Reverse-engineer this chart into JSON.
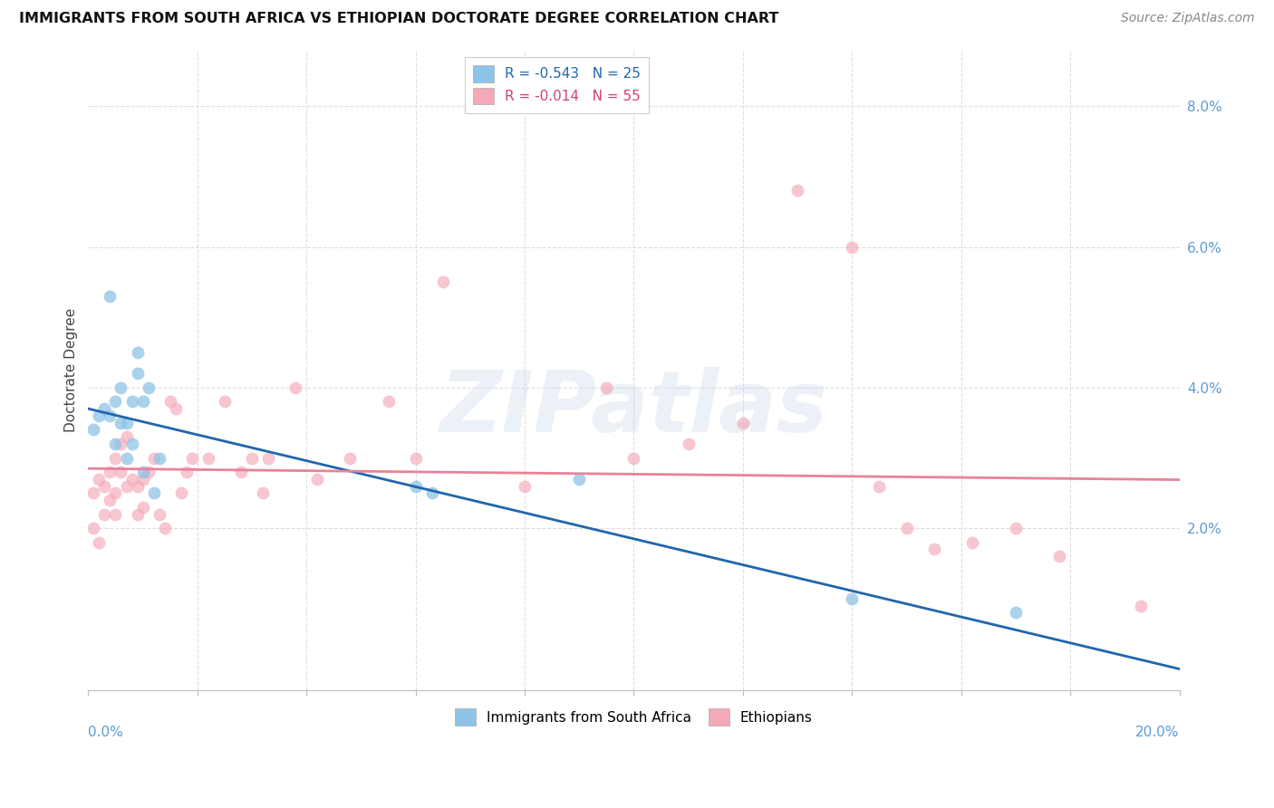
{
  "title": "IMMIGRANTS FROM SOUTH AFRICA VS ETHIOPIAN DOCTORATE DEGREE CORRELATION CHART",
  "source": "Source: ZipAtlas.com",
  "ylabel": "Doctorate Degree",
  "ytick_values": [
    0.02,
    0.04,
    0.06,
    0.08
  ],
  "xmin": 0.0,
  "xmax": 0.2,
  "ymin": -0.003,
  "ymax": 0.088,
  "legend_entry1": "R = -0.543   N = 25",
  "legend_entry2": "R = -0.014   N = 55",
  "legend_color1": "#8ec4e8",
  "legend_color2": "#f4a8b8",
  "sa_color": "#8ec4e8",
  "eth_color": "#f4a8b8",
  "sa_marker_size": 100,
  "eth_marker_size": 100,
  "sa_alpha": 0.75,
  "eth_alpha": 0.65,
  "trend_sa_color": "#2166ac",
  "trend_eth_color": "#e8829a",
  "background_color": "#ffffff",
  "sa_x": [
    0.001,
    0.002,
    0.003,
    0.004,
    0.004,
    0.005,
    0.005,
    0.006,
    0.006,
    0.007,
    0.007,
    0.008,
    0.008,
    0.009,
    0.009,
    0.01,
    0.01,
    0.011,
    0.012,
    0.013,
    0.06,
    0.063,
    0.09,
    0.14,
    0.17
  ],
  "sa_y": [
    0.034,
    0.036,
    0.037,
    0.053,
    0.036,
    0.038,
    0.032,
    0.04,
    0.035,
    0.035,
    0.03,
    0.038,
    0.032,
    0.045,
    0.042,
    0.038,
    0.028,
    0.04,
    0.025,
    0.03,
    0.026,
    0.025,
    0.027,
    0.01,
    0.008
  ],
  "eth_x": [
    0.001,
    0.001,
    0.002,
    0.002,
    0.003,
    0.003,
    0.004,
    0.004,
    0.005,
    0.005,
    0.005,
    0.006,
    0.006,
    0.007,
    0.007,
    0.008,
    0.009,
    0.009,
    0.01,
    0.01,
    0.011,
    0.012,
    0.013,
    0.014,
    0.015,
    0.016,
    0.017,
    0.018,
    0.019,
    0.022,
    0.025,
    0.028,
    0.03,
    0.032,
    0.033,
    0.038,
    0.042,
    0.048,
    0.055,
    0.06,
    0.065,
    0.08,
    0.095,
    0.1,
    0.11,
    0.12,
    0.13,
    0.14,
    0.145,
    0.15,
    0.155,
    0.162,
    0.17,
    0.178,
    0.193
  ],
  "eth_y": [
    0.025,
    0.02,
    0.027,
    0.018,
    0.026,
    0.022,
    0.028,
    0.024,
    0.03,
    0.025,
    0.022,
    0.028,
    0.032,
    0.033,
    0.026,
    0.027,
    0.026,
    0.022,
    0.027,
    0.023,
    0.028,
    0.03,
    0.022,
    0.02,
    0.038,
    0.037,
    0.025,
    0.028,
    0.03,
    0.03,
    0.038,
    0.028,
    0.03,
    0.025,
    0.03,
    0.04,
    0.027,
    0.03,
    0.038,
    0.03,
    0.055,
    0.026,
    0.04,
    0.03,
    0.032,
    0.035,
    0.068,
    0.06,
    0.026,
    0.02,
    0.017,
    0.018,
    0.02,
    0.016,
    0.009
  ],
  "grid_color": "#dedede",
  "watermark_color": "#c8d8e8",
  "watermark_alpha": 0.35,
  "watermark_fontsize": 68,
  "trend_sa_intercept": 0.037,
  "trend_sa_slope": -0.185,
  "trend_eth_intercept": 0.0285,
  "trend_eth_slope": -0.008
}
